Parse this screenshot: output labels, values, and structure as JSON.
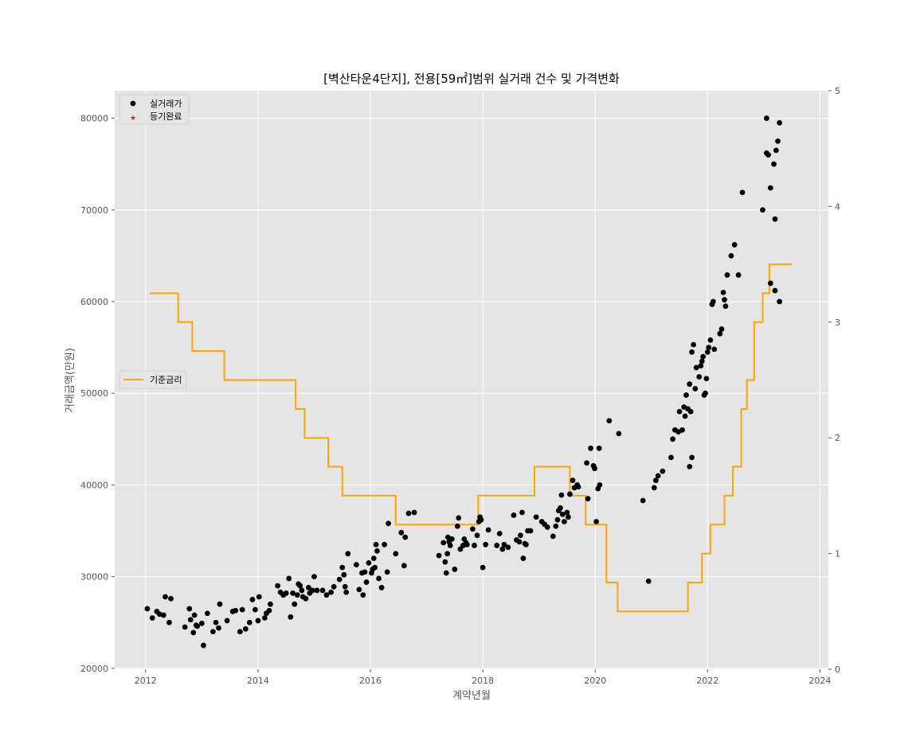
{
  "chart_data": {
    "type": "scatter",
    "title": "[벽산타운4단지], 전용[59㎡]범위 실거래 건수 및 가격변화",
    "xlabel": "계약년월",
    "ylabel": "거래금액(만원)",
    "x_ticks": [
      "2012",
      "2014",
      "2016",
      "2018",
      "2020",
      "2022",
      "2024"
    ],
    "xlim": [
      2011.45,
      2024.15
    ],
    "ylim": [
      19900,
      83000
    ],
    "y_ticks": [
      "20000",
      "30000",
      "40000",
      "50000",
      "60000",
      "70000",
      "80000"
    ],
    "y2lim": [
      0,
      5
    ],
    "y2_ticks": [
      "0",
      "1",
      "2",
      "3",
      "4",
      "5"
    ],
    "grid": true,
    "legend_top": {
      "placement": "top-left",
      "entries": [
        "실거래가",
        "등기완료"
      ]
    },
    "legend_mid": {
      "placement": "center-left",
      "entries": [
        "기준금리"
      ]
    },
    "colors": {
      "scatter": "#000000",
      "registered": "#e41a1c",
      "rate": "#ffa500",
      "plot_bg": "#e5e5e5",
      "grid": "#ffffff"
    },
    "series": [
      {
        "name": "실거래가",
        "marker": "circle",
        "points": [
          [
            2012.03,
            26500
          ],
          [
            2012.12,
            25500
          ],
          [
            2012.2,
            26200
          ],
          [
            2012.25,
            25900
          ],
          [
            2012.32,
            25800
          ],
          [
            2012.35,
            27800
          ],
          [
            2012.42,
            25000
          ],
          [
            2012.45,
            27600
          ],
          [
            2012.7,
            24500
          ],
          [
            2012.78,
            26500
          ],
          [
            2012.8,
            25300
          ],
          [
            2012.85,
            23900
          ],
          [
            2012.87,
            25800
          ],
          [
            2012.9,
            24700
          ],
          [
            2012.92,
            24600
          ],
          [
            2013.0,
            24900
          ],
          [
            2013.03,
            22500
          ],
          [
            2013.1,
            26000
          ],
          [
            2013.2,
            24000
          ],
          [
            2013.25,
            25000
          ],
          [
            2013.3,
            24400
          ],
          [
            2013.32,
            27000
          ],
          [
            2013.45,
            25200
          ],
          [
            2013.55,
            26200
          ],
          [
            2013.6,
            26300
          ],
          [
            2013.68,
            24000
          ],
          [
            2013.72,
            26400
          ],
          [
            2013.78,
            24300
          ],
          [
            2013.85,
            25000
          ],
          [
            2013.9,
            27500
          ],
          [
            2013.95,
            26400
          ],
          [
            2014.0,
            25200
          ],
          [
            2014.02,
            27800
          ],
          [
            2014.12,
            25500
          ],
          [
            2014.15,
            26000
          ],
          [
            2014.2,
            26300
          ],
          [
            2014.22,
            27000
          ],
          [
            2014.35,
            29000
          ],
          [
            2014.4,
            28300
          ],
          [
            2014.45,
            28000
          ],
          [
            2014.5,
            28200
          ],
          [
            2014.55,
            29800
          ],
          [
            2014.58,
            25600
          ],
          [
            2014.62,
            28200
          ],
          [
            2014.65,
            27000
          ],
          [
            2014.7,
            28000
          ],
          [
            2014.72,
            29200
          ],
          [
            2014.75,
            29000
          ],
          [
            2014.78,
            28500
          ],
          [
            2014.8,
            27800
          ],
          [
            2014.85,
            27600
          ],
          [
            2014.9,
            28800
          ],
          [
            2014.92,
            28200
          ],
          [
            2014.97,
            28500
          ],
          [
            2015.0,
            30000
          ],
          [
            2015.05,
            28500
          ],
          [
            2015.15,
            28500
          ],
          [
            2015.22,
            28000
          ],
          [
            2015.3,
            28300
          ],
          [
            2015.35,
            28900
          ],
          [
            2015.45,
            29700
          ],
          [
            2015.5,
            31000
          ],
          [
            2015.53,
            30200
          ],
          [
            2015.55,
            28900
          ],
          [
            2015.57,
            28300
          ],
          [
            2015.6,
            32500
          ],
          [
            2015.75,
            31300
          ],
          [
            2015.8,
            28600
          ],
          [
            2015.85,
            30400
          ],
          [
            2015.87,
            28000
          ],
          [
            2015.9,
            30500
          ],
          [
            2015.93,
            29400
          ],
          [
            2015.97,
            31500
          ],
          [
            2016.02,
            30400
          ],
          [
            2016.04,
            30800
          ],
          [
            2016.06,
            32000
          ],
          [
            2016.08,
            31000
          ],
          [
            2016.1,
            33500
          ],
          [
            2016.12,
            32800
          ],
          [
            2016.15,
            29800
          ],
          [
            2016.2,
            28800
          ],
          [
            2016.25,
            33500
          ],
          [
            2016.3,
            30500
          ],
          [
            2016.32,
            35800
          ],
          [
            2016.45,
            32500
          ],
          [
            2016.55,
            34800
          ],
          [
            2016.6,
            31200
          ],
          [
            2016.62,
            34300
          ],
          [
            2016.68,
            36900
          ],
          [
            2016.78,
            37000
          ],
          [
            2017.22,
            32300
          ],
          [
            2017.3,
            33700
          ],
          [
            2017.33,
            31600
          ],
          [
            2017.35,
            30400
          ],
          [
            2017.37,
            32500
          ],
          [
            2017.38,
            34300
          ],
          [
            2017.4,
            33800
          ],
          [
            2017.42,
            33400
          ],
          [
            2017.45,
            34100
          ],
          [
            2017.5,
            30800
          ],
          [
            2017.55,
            35500
          ],
          [
            2017.57,
            36400
          ],
          [
            2017.6,
            33000
          ],
          [
            2017.65,
            33400
          ],
          [
            2017.67,
            34100
          ],
          [
            2017.7,
            33700
          ],
          [
            2017.72,
            33500
          ],
          [
            2017.82,
            35200
          ],
          [
            2017.85,
            33400
          ],
          [
            2017.9,
            34500
          ],
          [
            2017.93,
            36000
          ],
          [
            2017.95,
            36500
          ],
          [
            2017.97,
            36200
          ],
          [
            2018.0,
            31000
          ],
          [
            2018.05,
            33500
          ],
          [
            2018.1,
            35100
          ],
          [
            2018.25,
            33400
          ],
          [
            2018.3,
            34700
          ],
          [
            2018.35,
            33000
          ],
          [
            2018.38,
            33500
          ],
          [
            2018.45,
            33200
          ],
          [
            2018.55,
            36700
          ],
          [
            2018.6,
            34000
          ],
          [
            2018.65,
            33800
          ],
          [
            2018.67,
            34500
          ],
          [
            2018.7,
            37000
          ],
          [
            2018.72,
            32000
          ],
          [
            2018.75,
            33600
          ],
          [
            2018.77,
            33500
          ],
          [
            2018.8,
            35000
          ],
          [
            2018.85,
            35000
          ],
          [
            2018.95,
            36500
          ],
          [
            2019.05,
            36000
          ],
          [
            2019.1,
            35700
          ],
          [
            2019.15,
            35400
          ],
          [
            2019.25,
            34400
          ],
          [
            2019.3,
            35500
          ],
          [
            2019.33,
            36200
          ],
          [
            2019.35,
            37200
          ],
          [
            2019.38,
            37500
          ],
          [
            2019.4,
            38900
          ],
          [
            2019.42,
            36800
          ],
          [
            2019.45,
            36000
          ],
          [
            2019.5,
            37000
          ],
          [
            2019.52,
            36500
          ],
          [
            2019.55,
            39000
          ],
          [
            2019.6,
            40500
          ],
          [
            2019.63,
            39700
          ],
          [
            2019.68,
            40000
          ],
          [
            2019.7,
            39800
          ],
          [
            2019.85,
            42400
          ],
          [
            2019.87,
            38500
          ],
          [
            2019.92,
            44000
          ],
          [
            2019.97,
            42100
          ],
          [
            2019.99,
            41800
          ],
          [
            2020.02,
            36000
          ],
          [
            2020.05,
            39600
          ],
          [
            2020.07,
            44000
          ],
          [
            2020.08,
            40000
          ],
          [
            2020.25,
            47000
          ],
          [
            2020.42,
            45600
          ],
          [
            2020.85,
            38300
          ],
          [
            2021.05,
            39700
          ],
          [
            2021.08,
            40500
          ],
          [
            2021.12,
            41000
          ],
          [
            2021.2,
            41500
          ],
          [
            2021.35,
            43000
          ],
          [
            2021.38,
            45000
          ],
          [
            2021.42,
            46000
          ],
          [
            2021.48,
            45800
          ],
          [
            2021.5,
            48000
          ],
          [
            2021.55,
            46000
          ],
          [
            2021.58,
            48500
          ],
          [
            2021.6,
            47500
          ],
          [
            2021.62,
            49800
          ],
          [
            2021.65,
            48300
          ],
          [
            2021.68,
            51000
          ],
          [
            2021.7,
            48000
          ],
          [
            2021.72,
            54500
          ],
          [
            2021.68,
            42000
          ],
          [
            2021.72,
            43000
          ],
          [
            2021.75,
            55300
          ],
          [
            2021.78,
            50500
          ],
          [
            2021.8,
            52800
          ],
          [
            2021.85,
            51800
          ],
          [
            2021.88,
            53000
          ],
          [
            2021.9,
            53500
          ],
          [
            2021.92,
            54000
          ],
          [
            2021.94,
            49800
          ],
          [
            2021.96,
            50000
          ],
          [
            2021.98,
            51600
          ],
          [
            2022.0,
            54500
          ],
          [
            2022.02,
            55000
          ],
          [
            2022.05,
            55800
          ],
          [
            2022.08,
            59700
          ],
          [
            2022.1,
            60000
          ],
          [
            2022.12,
            54800
          ],
          [
            2022.22,
            56500
          ],
          [
            2022.25,
            57000
          ],
          [
            2022.28,
            61000
          ],
          [
            2022.3,
            60200
          ],
          [
            2022.32,
            59500
          ],
          [
            2022.35,
            62900
          ],
          [
            2022.42,
            65000
          ],
          [
            2022.48,
            66200
          ],
          [
            2022.55,
            62900
          ],
          [
            2022.62,
            71900
          ],
          [
            2022.98,
            70000
          ],
          [
            2023.05,
            76200
          ],
          [
            2023.08,
            76000
          ],
          [
            2023.12,
            72400
          ],
          [
            2023.18,
            75000
          ],
          [
            2023.2,
            69000
          ],
          [
            2023.22,
            76500
          ],
          [
            2023.25,
            77500
          ],
          [
            2023.28,
            79500
          ],
          [
            2023.05,
            80000
          ],
          [
            2020.95,
            29500
          ],
          [
            2023.12,
            62000
          ],
          [
            2023.2,
            61200
          ],
          [
            2023.28,
            60000
          ]
        ]
      },
      {
        "name": "등기완료",
        "marker": "star",
        "points": []
      },
      {
        "name": "기준금리",
        "type": "step",
        "points": [
          [
            2012.07,
            3.25
          ],
          [
            2012.58,
            3.0
          ],
          [
            2012.83,
            2.75
          ],
          [
            2013.4,
            2.5
          ],
          [
            2014.67,
            2.25
          ],
          [
            2014.83,
            2.0
          ],
          [
            2015.25,
            1.75
          ],
          [
            2015.5,
            1.5
          ],
          [
            2016.45,
            1.25
          ],
          [
            2017.92,
            1.5
          ],
          [
            2018.92,
            1.75
          ],
          [
            2019.55,
            1.5
          ],
          [
            2019.83,
            1.25
          ],
          [
            2020.2,
            0.75
          ],
          [
            2020.4,
            0.5
          ],
          [
            2021.65,
            0.75
          ],
          [
            2021.9,
            1.0
          ],
          [
            2022.05,
            1.25
          ],
          [
            2022.3,
            1.5
          ],
          [
            2022.45,
            1.75
          ],
          [
            2022.6,
            2.25
          ],
          [
            2022.7,
            2.5
          ],
          [
            2022.83,
            3.0
          ],
          [
            2022.98,
            3.25
          ],
          [
            2023.1,
            3.5
          ],
          [
            2023.5,
            3.5
          ]
        ]
      }
    ]
  }
}
